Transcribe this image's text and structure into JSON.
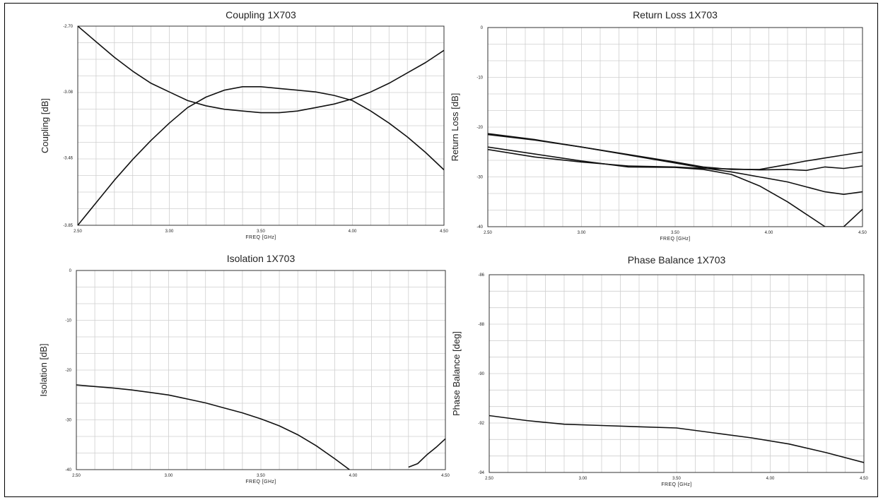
{
  "colors": {
    "trace": "#111111",
    "grid": "#cfcfcf",
    "axis": "#333333"
  },
  "chart_data": [
    {
      "type": "line",
      "title": "Coupling 1X703",
      "xlabel": "FREQ [GHz]",
      "ylabel": "Coupling [dB]",
      "xlim": [
        2.5,
        4.5
      ],
      "ylim": [
        -3.85,
        -2.7
      ],
      "xticks": [
        2.5,
        3.0,
        3.5,
        4.0,
        4.5
      ],
      "xticklabels": [
        "2.50",
        "3.00",
        "3.50",
        "4.00",
        "4.50"
      ],
      "yticks": [
        -2.7,
        -3.08,
        -3.46,
        -3.85
      ],
      "yticklabels": [
        "-2.70",
        "-3.08",
        "-3.46",
        "-3.85"
      ],
      "grid": true,
      "series": [
        {
          "x": [
            2.5,
            2.6,
            2.7,
            2.8,
            2.9,
            3.0,
            3.1,
            3.2,
            3.3,
            3.4,
            3.5,
            3.6,
            3.7,
            3.8,
            3.9,
            4.0,
            4.1,
            4.2,
            4.3,
            4.4,
            4.5
          ],
          "values": [
            -2.7,
            -2.79,
            -2.88,
            -2.96,
            -3.03,
            -3.08,
            -3.13,
            -3.16,
            -3.18,
            -3.19,
            -3.2,
            -3.2,
            -3.19,
            -3.17,
            -3.15,
            -3.12,
            -3.08,
            -3.03,
            -2.97,
            -2.91,
            -2.84
          ]
        },
        {
          "x": [
            2.5,
            2.6,
            2.7,
            2.8,
            2.9,
            3.0,
            3.1,
            3.2,
            3.3,
            3.4,
            3.5,
            3.6,
            3.7,
            3.8,
            3.9,
            4.0,
            4.1,
            4.2,
            4.3,
            4.4,
            4.5
          ],
          "values": [
            -3.85,
            -3.72,
            -3.59,
            -3.47,
            -3.36,
            -3.26,
            -3.17,
            -3.11,
            -3.07,
            -3.05,
            -3.05,
            -3.06,
            -3.07,
            -3.08,
            -3.1,
            -3.13,
            -3.19,
            -3.26,
            -3.34,
            -3.43,
            -3.53
          ]
        }
      ]
    },
    {
      "type": "line",
      "title": "Return Loss 1X703",
      "xlabel": "FREQ [GHz]",
      "ylabel": "Return Loss [dB]",
      "xlim": [
        2.5,
        4.5
      ],
      "ylim": [
        -40,
        0
      ],
      "xticks": [
        2.5,
        3.0,
        3.5,
        4.0,
        4.5
      ],
      "xticklabels": [
        "2.50",
        "3.00",
        "3.50",
        "4.00",
        "4.50"
      ],
      "yticks": [
        0,
        -10,
        -20,
        -30,
        -40
      ],
      "yticklabels": [
        "0",
        "-10",
        "-20",
        "-30",
        "-40"
      ],
      "grid": true,
      "series": [
        {
          "x": [
            2.5,
            2.75,
            3.0,
            3.25,
            3.5,
            3.65,
            3.8,
            3.95,
            4.1,
            4.2,
            4.3,
            4.4,
            4.5
          ],
          "values": [
            -21.5,
            -22.6,
            -24.0,
            -25.5,
            -27.0,
            -28.0,
            -28.5,
            -28.5,
            -27.5,
            -26.8,
            -26.2,
            -25.6,
            -25.0
          ]
        },
        {
          "x": [
            2.5,
            2.75,
            3.0,
            3.25,
            3.5,
            3.65,
            3.8,
            3.95,
            4.1,
            4.2,
            4.3,
            4.4,
            4.5
          ],
          "values": [
            -21.3,
            -22.5,
            -24.0,
            -25.6,
            -27.2,
            -28.2,
            -29.0,
            -30.0,
            -31.0,
            -32.0,
            -33.0,
            -33.5,
            -33.0
          ]
        },
        {
          "x": [
            2.5,
            2.75,
            3.0,
            3.25,
            3.5,
            3.65,
            3.8,
            3.95,
            4.1,
            4.2,
            4.3,
            4.4,
            4.5
          ],
          "values": [
            -24.5,
            -26.0,
            -27.0,
            -27.8,
            -28.0,
            -28.3,
            -28.4,
            -28.6,
            -28.5,
            -28.7,
            -28.0,
            -28.3,
            -27.8
          ]
        },
        {
          "x": [
            2.5,
            2.75,
            3.0,
            3.25,
            3.5,
            3.65,
            3.8,
            3.95,
            4.1,
            4.2,
            4.3,
            4.4,
            4.5
          ],
          "values": [
            -24.0,
            -25.4,
            -26.8,
            -28.0,
            -28.1,
            -28.5,
            -29.5,
            -31.8,
            -35.0,
            -37.5,
            -40.0,
            -40.0,
            -36.5
          ]
        }
      ]
    },
    {
      "type": "line",
      "title": "Isolation 1X703",
      "xlabel": "FREQ [GHz]",
      "ylabel": "Isolation [dB]",
      "xlim": [
        2.5,
        4.5
      ],
      "ylim": [
        -40,
        0
      ],
      "xticks": [
        2.5,
        3.0,
        3.5,
        4.0,
        4.5
      ],
      "xticklabels": [
        "2.50",
        "3.00",
        "3.50",
        "4.00",
        "4.50"
      ],
      "yticks": [
        0,
        -10,
        -20,
        -30,
        -40
      ],
      "yticklabels": [
        "0",
        "-10",
        "-20",
        "-30",
        "-40"
      ],
      "grid": true,
      "series": [
        {
          "x": [
            2.5,
            2.6,
            2.7,
            2.8,
            2.9,
            3.0,
            3.1,
            3.2,
            3.3,
            3.4,
            3.5,
            3.6,
            3.7,
            3.8,
            3.9,
            3.98
          ],
          "values": [
            -23.0,
            -23.3,
            -23.6,
            -24.0,
            -24.5,
            -25.0,
            -25.8,
            -26.6,
            -27.6,
            -28.6,
            -29.8,
            -31.2,
            -33.0,
            -35.2,
            -37.8,
            -40.0
          ]
        },
        {
          "x": [
            4.3,
            4.35,
            4.4,
            4.45,
            4.5
          ],
          "values": [
            -39.5,
            -38.8,
            -37.0,
            -35.5,
            -33.8
          ]
        }
      ]
    },
    {
      "type": "line",
      "title": "Phase Balance 1X703",
      "xlabel": "FREQ [GHz]",
      "ylabel": "Phase Balance [deg]",
      "xlim": [
        2.5,
        4.5
      ],
      "ylim": [
        -94,
        -86
      ],
      "xticks": [
        2.5,
        3.0,
        3.5,
        4.0,
        4.5
      ],
      "xticklabels": [
        "2.50",
        "3.00",
        "3.50",
        "4.00",
        "4.50"
      ],
      "yticks": [
        -86,
        -88,
        -90,
        -92,
        -94
      ],
      "yticklabels": [
        "-86",
        "-88",
        "-90",
        "-92",
        "-94"
      ],
      "grid": true,
      "series": [
        {
          "x": [
            2.5,
            2.7,
            2.9,
            3.1,
            3.3,
            3.5,
            3.7,
            3.9,
            4.1,
            4.3,
            4.5
          ],
          "values": [
            -91.7,
            -91.9,
            -92.05,
            -92.1,
            -92.15,
            -92.2,
            -92.4,
            -92.6,
            -92.85,
            -93.2,
            -93.6
          ]
        }
      ]
    }
  ]
}
